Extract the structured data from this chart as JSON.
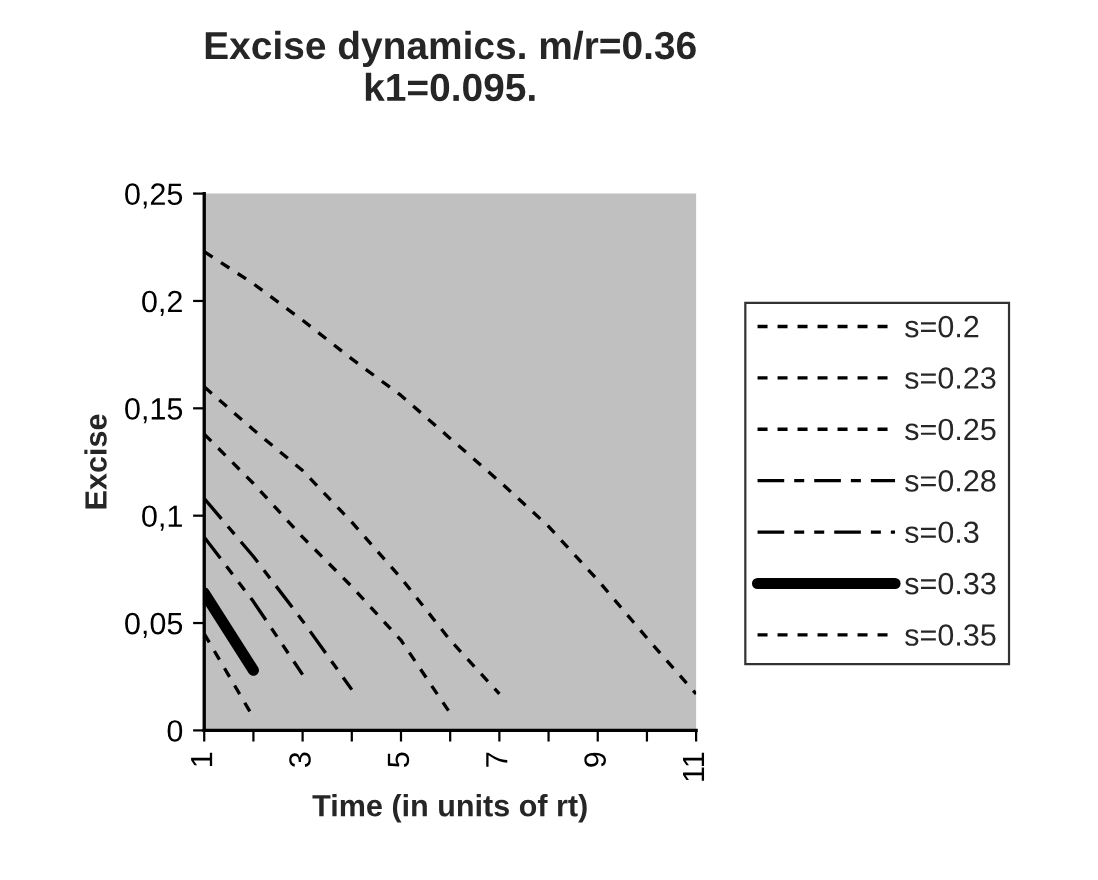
{
  "chart_data": {
    "type": "line",
    "title": "Excise dynamics. m/r=0.36\nk1=0.095.",
    "xlabel": "Time (in units of rt)",
    "ylabel": "Excise",
    "xlim": [
      1,
      11
    ],
    "xticks": [
      1,
      {
        "value": 2,
        "label": null
      },
      3,
      {
        "value": 4,
        "label": null
      },
      5,
      {
        "value": 6,
        "label": null
      },
      7,
      {
        "value": 8,
        "label": null
      },
      9,
      {
        "value": 10,
        "label": null
      },
      11
    ],
    "ylim": [
      0,
      0.25
    ],
    "yticks": [
      {
        "value": 0,
        "label": "0"
      },
      {
        "value": 0.05,
        "label": "0,05"
      },
      {
        "value": 0.1,
        "label": "0,1"
      },
      {
        "value": 0.15,
        "label": "0,15"
      },
      {
        "value": 0.2,
        "label": "0,2"
      },
      {
        "value": 0.25,
        "label": "0,25"
      }
    ],
    "grid": false,
    "legend": "right",
    "marker": "none",
    "series": [
      {
        "name": "s=0.2",
        "color": "#000000",
        "line_style": "dotted",
        "x": [
          1,
          2,
          3,
          4,
          5,
          6,
          7,
          8,
          9,
          10,
          11
        ],
        "values": [
          0.223,
          0.208,
          0.191,
          0.173,
          0.156,
          0.136,
          0.116,
          0.095,
          0.07,
          0.043,
          0.017
        ]
      },
      {
        "name": "s=0.23",
        "color": "#000000",
        "line_style": "dotted",
        "x": [
          1,
          2,
          3,
          4,
          5,
          6,
          7
        ],
        "values": [
          0.16,
          0.14,
          0.121,
          0.097,
          0.071,
          0.042,
          0.017
        ]
      },
      {
        "name": "s=0.25",
        "color": "#000000",
        "line_style": "dotted",
        "x": [
          1,
          2,
          3,
          4,
          5,
          6
        ],
        "values": [
          0.138,
          0.115,
          0.09,
          0.067,
          0.042,
          0.008
        ]
      },
      {
        "name": "s=0.28",
        "color": "#000000",
        "line_style": "dashdot",
        "x": [
          1,
          2,
          3,
          4
        ],
        "values": [
          0.108,
          0.081,
          0.051,
          0.019
        ]
      },
      {
        "name": "s=0.3",
        "color": "#000000",
        "line_style": "dashdotdot",
        "x": [
          1,
          2,
          3
        ],
        "values": [
          0.09,
          0.06,
          0.026
        ]
      },
      {
        "name": "s=0.33",
        "color": "#000000",
        "line_style": "solid",
        "x": [
          1,
          2
        ],
        "values": [
          0.064,
          0.028
        ]
      },
      {
        "name": "s=0.35",
        "color": "#000000",
        "line_style": "dotted",
        "x": [
          1,
          2
        ],
        "values": [
          0.045,
          0.006
        ]
      }
    ]
  }
}
